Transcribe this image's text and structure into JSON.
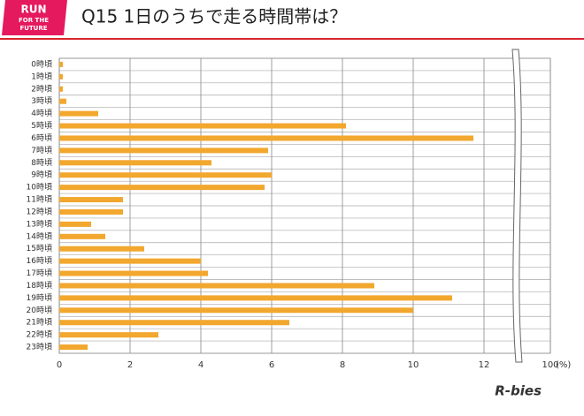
{
  "logo": [
    "RUN",
    "FOR THE",
    "FUTURE"
  ],
  "brand": "R-bies",
  "chart_data": {
    "type": "bar",
    "orientation": "horizontal",
    "title": "Q15 1日のうちで走る時間帯は？",
    "x_unit": "(%)",
    "categories": [
      "0時頃",
      "1時頃",
      "2時頃",
      "3時頃",
      "4時頃",
      "5時頃",
      "6時頃",
      "7時頃",
      "8時頃",
      "9時頃",
      "10時頃",
      "11時頃",
      "12時頃",
      "13時頃",
      "14時頃",
      "15時頃",
      "16時頃",
      "17時頃",
      "18時頃",
      "19時頃",
      "20時頃",
      "21時頃",
      "22時頃",
      "23時頃"
    ],
    "values": [
      0.1,
      0.1,
      0.1,
      0.2,
      1.1,
      8.1,
      11.7,
      5.9,
      4.3,
      6.0,
      5.8,
      1.8,
      1.8,
      0.9,
      1.3,
      2.4,
      4.0,
      4.2,
      8.9,
      11.1,
      10.0,
      6.5,
      2.8,
      0.8
    ],
    "color": "#f2a72e",
    "xlim": [
      0,
      100
    ],
    "axis_break": [
      13,
      99
    ],
    "xticks": [
      0,
      2,
      4,
      6,
      8,
      10,
      12,
      100
    ],
    "grid": true
  }
}
